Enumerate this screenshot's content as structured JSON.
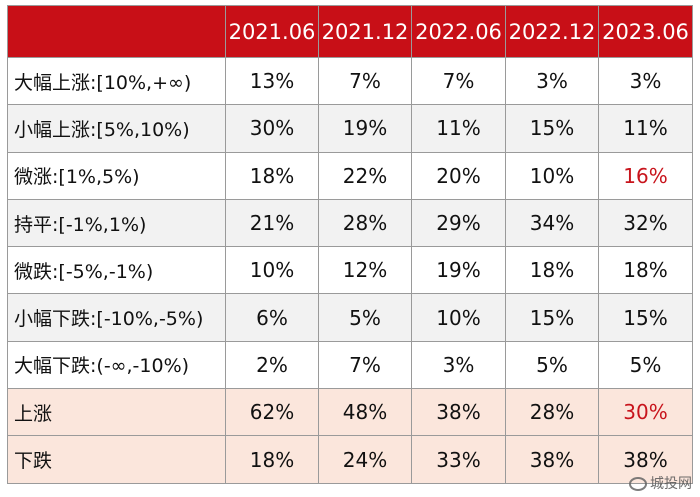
{
  "chart_data": {
    "type": "table",
    "columns": [
      "2021.06",
      "2021.12",
      "2022.06",
      "2022.12",
      "2023.06"
    ],
    "rows": [
      {
        "label": "大幅上涨:[10%,+∞)",
        "values": [
          "13%",
          "7%",
          "7%",
          "3%",
          "3%"
        ],
        "style": "plain",
        "highlight": []
      },
      {
        "label": "小幅上涨:[5%,10%)",
        "values": [
          "30%",
          "19%",
          "11%",
          "15%",
          "11%"
        ],
        "style": "alt",
        "highlight": []
      },
      {
        "label": "微涨:[1%,5%)",
        "values": [
          "18%",
          "22%",
          "20%",
          "10%",
          "16%"
        ],
        "style": "plain",
        "highlight": [
          4
        ]
      },
      {
        "label": "持平:[-1%,1%)",
        "values": [
          "21%",
          "28%",
          "29%",
          "34%",
          "32%"
        ],
        "style": "alt",
        "highlight": []
      },
      {
        "label": "微跌:[-5%,-1%)",
        "values": [
          "10%",
          "12%",
          "19%",
          "18%",
          "18%"
        ],
        "style": "plain",
        "highlight": []
      },
      {
        "label": "小幅下跌:[-10%,-5%)",
        "values": [
          "6%",
          "5%",
          "10%",
          "15%",
          "15%"
        ],
        "style": "alt",
        "highlight": []
      },
      {
        "label": "大幅下跌:(-∞,-10%)",
        "values": [
          "2%",
          "7%",
          "3%",
          "5%",
          "5%"
        ],
        "style": "plain",
        "highlight": []
      },
      {
        "label": "上涨",
        "values": [
          "62%",
          "48%",
          "38%",
          "28%",
          "30%"
        ],
        "style": "summary",
        "highlight": [
          4
        ]
      },
      {
        "label": "下跌",
        "values": [
          "18%",
          "24%",
          "33%",
          "38%",
          "38%"
        ],
        "style": "summary",
        "highlight": []
      }
    ],
    "colors": {
      "header": "#c80f17",
      "highlight_text": "#c8141c",
      "summary_bg": "#fbe6dc",
      "alt_bg": "#f2f2f2"
    }
  },
  "watermark": "城投网"
}
